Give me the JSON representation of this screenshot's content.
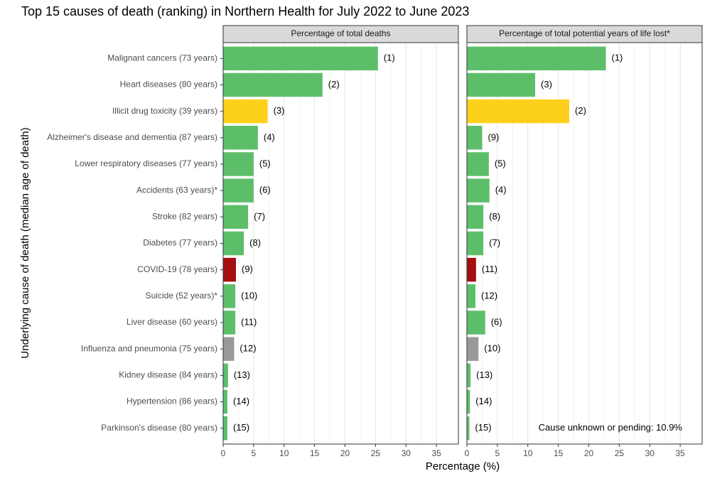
{
  "chart_data": {
    "type": "bar",
    "orientation": "horizontal",
    "title": "Top 15 causes of death (ranking) in Northern Health for July 2022 to June 2023",
    "x_label": "Percentage (%)",
    "y_label": "Underlying cause of death (median age of death)",
    "categories": [
      "Malignant cancers (73 years)",
      "Heart diseases (80 years)",
      "Illicit drug toxicity (39 years)",
      "Alzheimer's disease and dementia (87 years)",
      "Lower respiratory diseases (77 years)",
      "Accidents (63 years)*",
      "Stroke (82 years)",
      "Diabetes (77 years)",
      "COVID-19 (78 years)",
      "Suicide (52 years)*",
      "Liver disease (60 years)",
      "Influenza and pneumonia (75 years)",
      "Kidney disease (84 years)",
      "Hypertension (86 years)",
      "Parkinson's disease (80 years)"
    ],
    "colors": [
      "#5dbe6a",
      "#5dbe6a",
      "#fdd01b",
      "#5dbe6a",
      "#5dbe6a",
      "#5dbe6a",
      "#5dbe6a",
      "#5dbe6a",
      "#a50f0f",
      "#5dbe6a",
      "#5dbe6a",
      "#999999",
      "#5dbe6a",
      "#5dbe6a",
      "#5dbe6a"
    ],
    "series": [
      {
        "name": "Percentage of total deaths",
        "values": [
          25.4,
          16.3,
          7.3,
          5.7,
          5.0,
          5.0,
          4.1,
          3.4,
          2.1,
          2.0,
          2.0,
          1.8,
          0.8,
          0.7,
          0.7
        ],
        "value_labels": [
          "(1)",
          "(2)",
          "(3)",
          "(4)",
          "(5)",
          "(6)",
          "(7)",
          "(8)",
          "(9)",
          "(10)",
          "(11)",
          "(12)",
          "(13)",
          "(14)",
          "(15)"
        ]
      },
      {
        "name": "Percentage of total potential years of life lost*",
        "values": [
          22.8,
          11.2,
          16.8,
          2.5,
          3.6,
          3.7,
          2.7,
          2.7,
          1.5,
          1.4,
          3.0,
          1.9,
          0.6,
          0.5,
          0.4
        ],
        "value_labels": [
          "(1)",
          "(3)",
          "(2)",
          "(9)",
          "(5)",
          "(4)",
          "(8)",
          "(7)",
          "(11)",
          "(12)",
          "(6)",
          "(10)",
          "(13)",
          "(14)",
          "(15)"
        ],
        "annotation": "Cause unknown or pending: 10.9%"
      }
    ],
    "xlim": [
      0,
      38.6
    ],
    "xticks": [
      0,
      5,
      10,
      15,
      20,
      25,
      30,
      35
    ],
    "grid": true
  }
}
